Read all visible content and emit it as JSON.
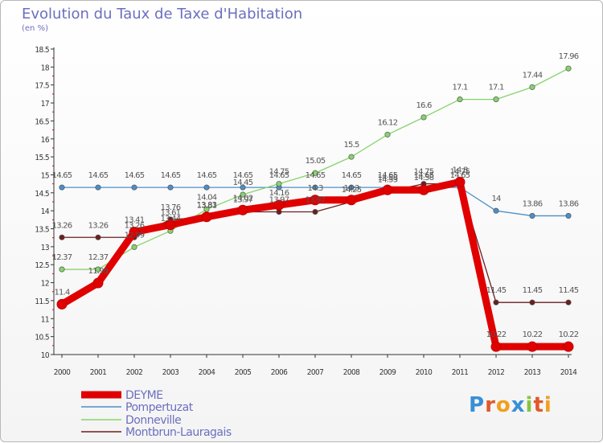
{
  "chart_data": {
    "type": "line",
    "title": "Evolution du Taux de Taxe d'Habitation",
    "subtitle": "(en %)",
    "x": [
      "2000",
      "2001",
      "2002",
      "2003",
      "2004",
      "2005",
      "2006",
      "2007",
      "2008",
      "2009",
      "2010",
      "2011",
      "2012",
      "2013",
      "2014"
    ],
    "ylim": [
      10,
      18.5
    ],
    "yticks": [
      10,
      10.5,
      11,
      11.5,
      12,
      12.5,
      13,
      13.5,
      14,
      14.5,
      15,
      15.5,
      16,
      16.5,
      17,
      17.5,
      18,
      18.5
    ],
    "ytick_labels": [
      "10",
      "10.5",
      "11",
      "11.5",
      "12",
      "12.5",
      "13",
      "13.5",
      "14",
      "14.5",
      "15",
      "15.5",
      "16",
      "16.5",
      "17",
      "17.5",
      "18",
      "18.5"
    ],
    "grid": false,
    "legend_position": "bottom-left",
    "series": [
      {
        "name": "DEYME",
        "color": "#e00000",
        "values": [
          11.4,
          11.99,
          13.41,
          13.61,
          13.83,
          14.02,
          14.16,
          14.3,
          14.3,
          14.58,
          14.58,
          14.8,
          10.22,
          10.22,
          10.22
        ]
      },
      {
        "name": "Pompertuzat",
        "color": "#4b8fc8",
        "values": [
          14.65,
          14.65,
          14.65,
          14.65,
          14.65,
          14.65,
          14.65,
          14.65,
          14.65,
          14.65,
          14.65,
          14.65,
          14.0,
          13.86,
          13.86
        ]
      },
      {
        "name": "Donneville",
        "color": "#86d36b",
        "values": [
          12.37,
          12.37,
          12.99,
          13.44,
          14.04,
          14.45,
          14.75,
          15.05,
          15.5,
          16.12,
          16.6,
          17.1,
          17.1,
          17.44,
          17.96
        ]
      },
      {
        "name": "Montbrun-Lauragais",
        "color": "#6b1f1f",
        "values": [
          13.26,
          13.26,
          13.26,
          13.76,
          13.81,
          13.97,
          13.97,
          13.97,
          14.25,
          14.53,
          14.75,
          14.75,
          11.45,
          11.45,
          11.45
        ]
      }
    ],
    "data_labels": [
      [
        "11.4",
        "11.99",
        "13.41",
        "13.61",
        "13.83",
        "14.02",
        "14.16",
        "14.3",
        "14.3",
        "14.58",
        "14.58",
        "14.8",
        "10.22",
        "10.22",
        "10.22"
      ],
      [
        "14.65",
        "14.65",
        "14.65",
        "14.65",
        "14.65",
        "14.65",
        "14.65",
        "14.65",
        "14.65",
        "14.65",
        "14.65",
        "14.65",
        "14",
        "13.86",
        "13.86"
      ],
      [
        "12.37",
        "12.37",
        "12.99",
        "13.44",
        "14.04",
        "14.45",
        "14.75",
        "15.05",
        "15.5",
        "16.12",
        "16.6",
        "17.1",
        "17.1",
        "17.44",
        "17.96"
      ],
      [
        "13.26",
        "13.26",
        "13.26",
        "13.76",
        "13.81",
        "13.97",
        "13.97",
        "13.97",
        "14.25",
        "14.53",
        "14.75",
        "14.75",
        "11.45",
        "11.45",
        "11.45"
      ]
    ]
  },
  "logo": {
    "text": "Proxiti"
  }
}
